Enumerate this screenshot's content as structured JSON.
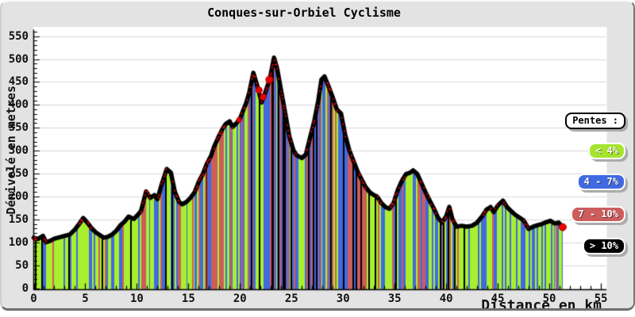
{
  "title": "Conques-sur-Orbiel Cyclisme",
  "axes": {
    "x": {
      "label": "Distance en km",
      "ticks": [
        0,
        5,
        10,
        15,
        20,
        25,
        30,
        35,
        40,
        45,
        50,
        55
      ],
      "min": 0,
      "max": 55.5,
      "minor_step": 1
    },
    "y": {
      "label": "Dénivelé en metres",
      "ticks": [
        0,
        50,
        100,
        150,
        200,
        250,
        300,
        350,
        400,
        450,
        500,
        550
      ],
      "min": 0,
      "max": 560,
      "minor_step": 10
    }
  },
  "legend": {
    "title": "Pentes :",
    "items": [
      {
        "label": "< 4%",
        "color": "#a6e42f",
        "range": "slope under 4%"
      },
      {
        "label": "4 - 7%",
        "color": "#4169e1",
        "range": "slope 4 to 7%"
      },
      {
        "label": "7 - 10%",
        "color": "#cd5c5c",
        "range": "slope 7 to 10%"
      },
      {
        "label": "> 10%",
        "color": "#000000",
        "range": "slope over 10%"
      }
    ]
  },
  "colors": {
    "plot_bg": "#ffffff",
    "panel_bg": "#e3e3e3",
    "grid": "#d9d9d9",
    "axis": "#000000",
    "line": "#000000",
    "speckle": "#e00000",
    "marker": "#ee0000",
    "bars": [
      "#a8f02f",
      "#4169e1",
      "#cd5c5c",
      "#000000"
    ]
  },
  "chart_data": {
    "type": "area",
    "title": "Conques-sur-Orbiel Cyclisme",
    "xlabel": "Distance en km",
    "ylabel": "Dénivelé en metres",
    "xlim": [
      0,
      55.5
    ],
    "ylim": [
      0,
      560
    ],
    "grid": "horizontal",
    "legend_position": "right",
    "gradient_thresholds_pct": [
      4,
      7,
      10
    ],
    "profile": [
      [
        0,
        110
      ],
      [
        0.4,
        107
      ],
      [
        0.9,
        114
      ],
      [
        1.2,
        100
      ],
      [
        1.6,
        103
      ],
      [
        2,
        108
      ],
      [
        2.5,
        111
      ],
      [
        3,
        114
      ],
      [
        3.5,
        117
      ],
      [
        4,
        128
      ],
      [
        4.4,
        140
      ],
      [
        4.8,
        153
      ],
      [
        5.2,
        143
      ],
      [
        5.6,
        131
      ],
      [
        6,
        122
      ],
      [
        6.4,
        116
      ],
      [
        6.8,
        110
      ],
      [
        7.2,
        112
      ],
      [
        7.6,
        117
      ],
      [
        8,
        125
      ],
      [
        8.4,
        137
      ],
      [
        8.8,
        145
      ],
      [
        9.2,
        156
      ],
      [
        9.7,
        151
      ],
      [
        10.1,
        160
      ],
      [
        10.4,
        168
      ],
      [
        10.9,
        211
      ],
      [
        11.3,
        197
      ],
      [
        11.7,
        203
      ],
      [
        12,
        194
      ],
      [
        12.4,
        226
      ],
      [
        12.9,
        260
      ],
      [
        13.3,
        252
      ],
      [
        13.7,
        209
      ],
      [
        14.1,
        188
      ],
      [
        14.4,
        183
      ],
      [
        14.8,
        188
      ],
      [
        15.2,
        197
      ],
      [
        15.6,
        209
      ],
      [
        16,
        232
      ],
      [
        16.4,
        249
      ],
      [
        16.8,
        272
      ],
      [
        17.2,
        289
      ],
      [
        17.5,
        309
      ],
      [
        17.9,
        329
      ],
      [
        18.3,
        347
      ],
      [
        18.6,
        358
      ],
      [
        19,
        364
      ],
      [
        19.3,
        352
      ],
      [
        19.7,
        361
      ],
      [
        20,
        370
      ],
      [
        20.3,
        387
      ],
      [
        20.6,
        404
      ],
      [
        20.9,
        427
      ],
      [
        21.3,
        470
      ],
      [
        21.7,
        440
      ],
      [
        22.1,
        405
      ],
      [
        22.5,
        430
      ],
      [
        22.9,
        457
      ],
      [
        23.3,
        503
      ],
      [
        23.6,
        480
      ],
      [
        24,
        430
      ],
      [
        24.4,
        380
      ],
      [
        24.8,
        330
      ],
      [
        25.2,
        300
      ],
      [
        25.5,
        290
      ],
      [
        26,
        284
      ],
      [
        26.4,
        292
      ],
      [
        26.8,
        329
      ],
      [
        27.2,
        364
      ],
      [
        27.6,
        410
      ],
      [
        27.9,
        455
      ],
      [
        28.2,
        462
      ],
      [
        28.6,
        440
      ],
      [
        29,
        416
      ],
      [
        29.4,
        390
      ],
      [
        29.8,
        381
      ],
      [
        30.2,
        335
      ],
      [
        30.6,
        301
      ],
      [
        31,
        278
      ],
      [
        31.4,
        255
      ],
      [
        31.8,
        237
      ],
      [
        32.2,
        220
      ],
      [
        32.6,
        209
      ],
      [
        33,
        203
      ],
      [
        33.3,
        200
      ],
      [
        33.7,
        186
      ],
      [
        34.1,
        177
      ],
      [
        34.5,
        173
      ],
      [
        34.9,
        186
      ],
      [
        35.3,
        214
      ],
      [
        35.7,
        234
      ],
      [
        36.1,
        249
      ],
      [
        36.5,
        252
      ],
      [
        36.8,
        257
      ],
      [
        37.2,
        249
      ],
      [
        37.6,
        229
      ],
      [
        38,
        209
      ],
      [
        38.4,
        191
      ],
      [
        38.8,
        174
      ],
      [
        39.2,
        154
      ],
      [
        39.6,
        143
      ],
      [
        40,
        157
      ],
      [
        40.3,
        177
      ],
      [
        40.6,
        151
      ],
      [
        41,
        134
      ],
      [
        41.5,
        136
      ],
      [
        42,
        134
      ],
      [
        42.5,
        136
      ],
      [
        43,
        143
      ],
      [
        43.5,
        157
      ],
      [
        43.9,
        171
      ],
      [
        44.3,
        177
      ],
      [
        44.6,
        166
      ],
      [
        45,
        180
      ],
      [
        45.5,
        191
      ],
      [
        45.9,
        177
      ],
      [
        46.3,
        168
      ],
      [
        46.7,
        160
      ],
      [
        47.1,
        154
      ],
      [
        47.5,
        148
      ],
      [
        48,
        129
      ],
      [
        48.4,
        134
      ],
      [
        48.8,
        137
      ],
      [
        49.3,
        140
      ],
      [
        49.7,
        144
      ],
      [
        50.1,
        147
      ],
      [
        50.5,
        141
      ],
      [
        50.9,
        143
      ],
      [
        51.3,
        133
      ]
    ],
    "markers": [
      {
        "km": 0.1,
        "elev": 108,
        "r": 2.5
      },
      {
        "km": 19.9,
        "elev": 367,
        "r": 3
      },
      {
        "km": 21.85,
        "elev": 432,
        "r": 4
      },
      {
        "km": 22.25,
        "elev": 417,
        "r": 4
      },
      {
        "km": 22.85,
        "elev": 455,
        "r": 4.5
      },
      {
        "km": 51.3,
        "elev": 133,
        "r": 4.5
      }
    ]
  }
}
